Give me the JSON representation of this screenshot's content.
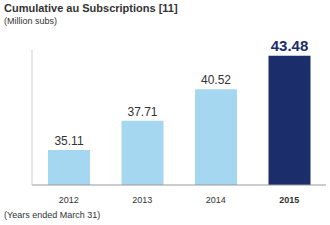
{
  "chart_data": {
    "type": "bar",
    "title": "Cumulative au Subscriptions [11]",
    "subtitle": "(Million subs)",
    "annotations": [
      "(Years ended March 31)"
    ],
    "categories": [
      "2012",
      "2013",
      "2014",
      "2015"
    ],
    "values": [
      35.11,
      37.71,
      40.52,
      43.48
    ],
    "colors": [
      "#a6d7f0",
      "#a6d7f0",
      "#a6d7f0",
      "#1b2d6b"
    ],
    "ylim": [
      32,
      44
    ],
    "yticks": [],
    "tick_labels": "x",
    "data_labels": true
  }
}
